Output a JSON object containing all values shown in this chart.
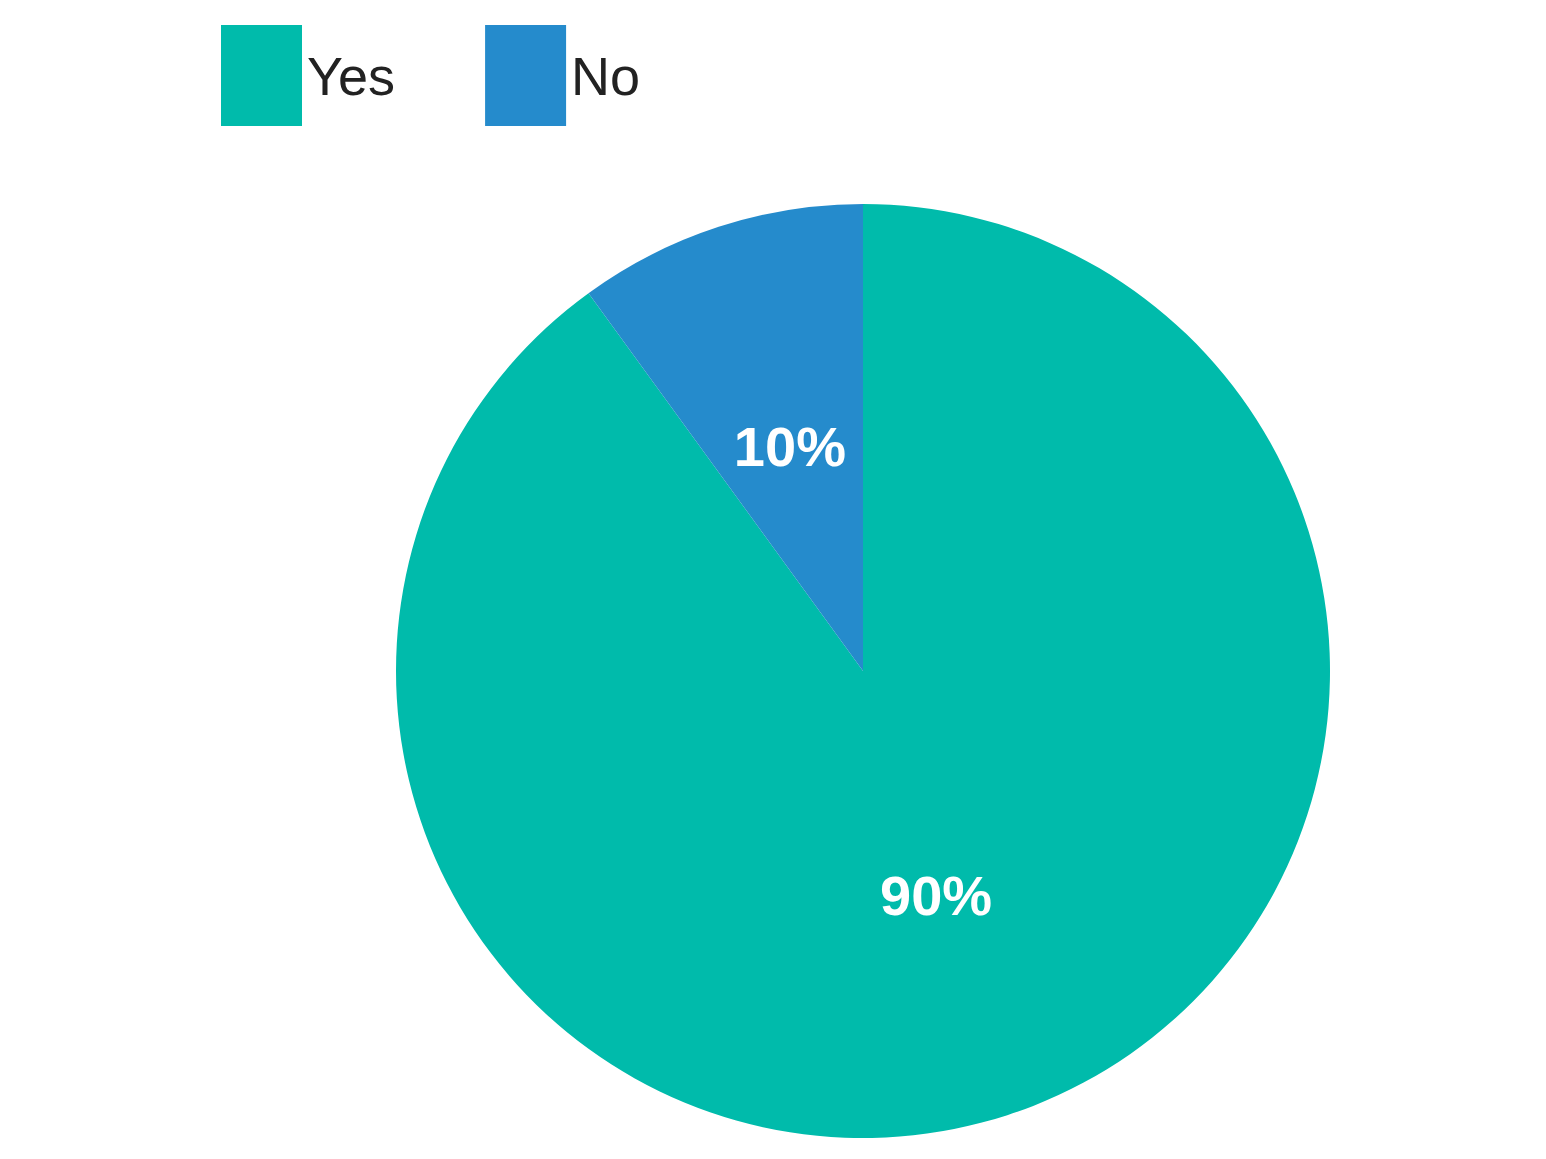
{
  "chart_data": {
    "type": "pie",
    "categories": [
      "Yes",
      "No"
    ],
    "values": [
      90,
      10
    ],
    "colors": [
      "#00bbab",
      "#258bcc"
    ],
    "value_labels": [
      "90%",
      "10%"
    ],
    "legend": "top left"
  }
}
